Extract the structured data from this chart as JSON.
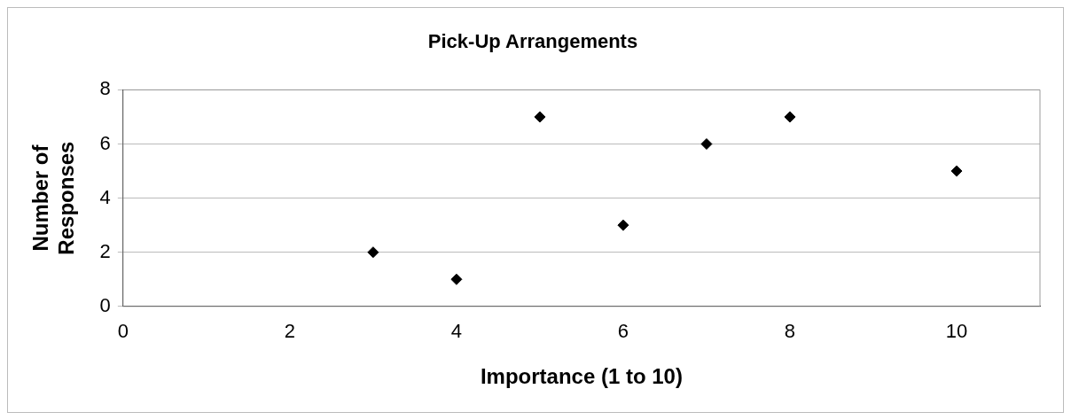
{
  "chart_data": {
    "type": "scatter",
    "title": "Pick-Up Arrangements",
    "xlabel": "Importance (1 to 10)",
    "ylabel": "Number of Responses",
    "x": [
      3,
      4,
      5,
      6,
      7,
      8,
      10
    ],
    "values": [
      2,
      1,
      7,
      3,
      6,
      7,
      5
    ],
    "color": "#000000",
    "xlim": [
      0,
      11
    ],
    "xticks": [
      0,
      2,
      4,
      6,
      8,
      10
    ],
    "ylim": [
      0,
      8
    ],
    "yticks": [
      0,
      2,
      4,
      6,
      8
    ],
    "grid": "y",
    "legend": false,
    "marker": "diamond"
  }
}
